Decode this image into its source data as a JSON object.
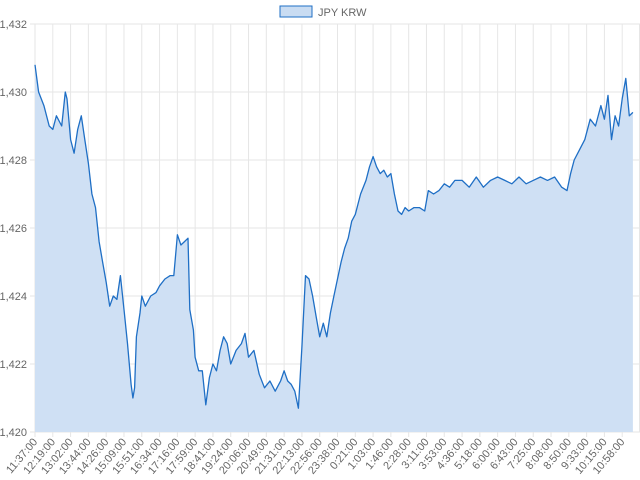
{
  "colors": {
    "line": "#1f6fc5",
    "fill": "#cfe0f4",
    "legend_fill": "#c9dcf2",
    "grid": "#e6e6e6",
    "axis_text": "#666666"
  },
  "chart_data": {
    "type": "area",
    "title": "",
    "xlabel": "",
    "ylabel": "",
    "legend": {
      "position": "top-center",
      "entries": [
        "JPY KRW"
      ]
    },
    "grid": true,
    "ylim": [
      1420,
      1432
    ],
    "y_ticks": [
      "1,420",
      "1,422",
      "1,424",
      "1,426",
      "1,428",
      "1,430",
      "1,432"
    ],
    "x_ticks": [
      "11:37:00",
      "12:19:00",
      "13:02:00",
      "13:44:00",
      "14:26:00",
      "15:09:00",
      "15:51:00",
      "16:34:00",
      "17:16:00",
      "17:59:00",
      "18:41:00",
      "19:24:00",
      "20:06:00",
      "20:49:00",
      "21:31:00",
      "22:13:00",
      "22:56:00",
      "23:38:00",
      "0:21:00",
      "1:03:00",
      "1:46:00",
      "2:28:00",
      "3:11:00",
      "3:53:00",
      "4:36:00",
      "5:18:00",
      "6:00:00",
      "6:43:00",
      "7:25:00",
      "8:08:00",
      "8:50:00",
      "9:33:00",
      "10:15:00",
      "10:58:00"
    ],
    "series": [
      {
        "name": "JPY KRW",
        "points": [
          [
            0,
            1430.8
          ],
          [
            0.2,
            1430.0
          ],
          [
            0.5,
            1429.6
          ],
          [
            0.8,
            1429.0
          ],
          [
            1.0,
            1428.9
          ],
          [
            1.2,
            1429.3
          ],
          [
            1.5,
            1429.0
          ],
          [
            1.7,
            1430.0
          ],
          [
            1.8,
            1429.8
          ],
          [
            2.0,
            1428.6
          ],
          [
            2.2,
            1428.2
          ],
          [
            2.4,
            1428.9
          ],
          [
            2.6,
            1429.3
          ],
          [
            2.8,
            1428.6
          ],
          [
            3.0,
            1427.9
          ],
          [
            3.2,
            1427.0
          ],
          [
            3.4,
            1426.6
          ],
          [
            3.6,
            1425.6
          ],
          [
            3.8,
            1425.0
          ],
          [
            4.0,
            1424.4
          ],
          [
            4.2,
            1423.7
          ],
          [
            4.4,
            1424.0
          ],
          [
            4.6,
            1423.9
          ],
          [
            4.8,
            1424.6
          ],
          [
            5.0,
            1423.6
          ],
          [
            5.2,
            1422.6
          ],
          [
            5.4,
            1421.4
          ],
          [
            5.5,
            1421.0
          ],
          [
            5.6,
            1421.3
          ],
          [
            5.7,
            1422.8
          ],
          [
            5.9,
            1423.5
          ],
          [
            6.0,
            1424.0
          ],
          [
            6.2,
            1423.7
          ],
          [
            6.5,
            1424.0
          ],
          [
            6.8,
            1424.1
          ],
          [
            7.0,
            1424.3
          ],
          [
            7.3,
            1424.5
          ],
          [
            7.6,
            1424.6
          ],
          [
            7.8,
            1424.6
          ],
          [
            8.0,
            1425.8
          ],
          [
            8.2,
            1425.5
          ],
          [
            8.4,
            1425.6
          ],
          [
            8.6,
            1425.7
          ],
          [
            8.7,
            1423.6
          ],
          [
            8.9,
            1423.0
          ],
          [
            9.0,
            1422.2
          ],
          [
            9.2,
            1421.8
          ],
          [
            9.4,
            1421.8
          ],
          [
            9.6,
            1420.8
          ],
          [
            9.8,
            1421.6
          ],
          [
            10.0,
            1422.0
          ],
          [
            10.2,
            1421.8
          ],
          [
            10.4,
            1422.4
          ],
          [
            10.6,
            1422.8
          ],
          [
            10.8,
            1422.6
          ],
          [
            11.0,
            1422.0
          ],
          [
            11.3,
            1422.4
          ],
          [
            11.6,
            1422.6
          ],
          [
            11.8,
            1422.9
          ],
          [
            12.0,
            1422.2
          ],
          [
            12.3,
            1422.4
          ],
          [
            12.6,
            1421.7
          ],
          [
            12.9,
            1421.3
          ],
          [
            13.2,
            1421.5
          ],
          [
            13.5,
            1421.2
          ],
          [
            13.8,
            1421.5
          ],
          [
            14.0,
            1421.8
          ],
          [
            14.2,
            1421.5
          ],
          [
            14.4,
            1421.4
          ],
          [
            14.6,
            1421.2
          ],
          [
            14.8,
            1420.7
          ],
          [
            15.0,
            1422.5
          ],
          [
            15.2,
            1424.6
          ],
          [
            15.4,
            1424.5
          ],
          [
            15.6,
            1424.0
          ],
          [
            15.8,
            1423.4
          ],
          [
            16.0,
            1422.8
          ],
          [
            16.2,
            1423.2
          ],
          [
            16.4,
            1422.8
          ],
          [
            16.6,
            1423.5
          ],
          [
            16.8,
            1424.0
          ],
          [
            17.0,
            1424.5
          ],
          [
            17.2,
            1425.0
          ],
          [
            17.4,
            1425.4
          ],
          [
            17.6,
            1425.7
          ],
          [
            17.8,
            1426.2
          ],
          [
            18.0,
            1426.4
          ],
          [
            18.3,
            1427.0
          ],
          [
            18.6,
            1427.4
          ],
          [
            18.8,
            1427.8
          ],
          [
            19.0,
            1428.1
          ],
          [
            19.2,
            1427.8
          ],
          [
            19.4,
            1427.6
          ],
          [
            19.6,
            1427.7
          ],
          [
            19.8,
            1427.5
          ],
          [
            20.0,
            1427.6
          ],
          [
            20.2,
            1427.0
          ],
          [
            20.4,
            1426.5
          ],
          [
            20.6,
            1426.4
          ],
          [
            20.8,
            1426.6
          ],
          [
            21.0,
            1426.5
          ],
          [
            21.3,
            1426.6
          ],
          [
            21.6,
            1426.6
          ],
          [
            21.9,
            1426.5
          ],
          [
            22.1,
            1427.1
          ],
          [
            22.4,
            1427.0
          ],
          [
            22.7,
            1427.1
          ],
          [
            23.0,
            1427.3
          ],
          [
            23.3,
            1427.2
          ],
          [
            23.6,
            1427.4
          ],
          [
            24.0,
            1427.4
          ],
          [
            24.4,
            1427.2
          ],
          [
            24.8,
            1427.5
          ],
          [
            25.2,
            1427.2
          ],
          [
            25.6,
            1427.4
          ],
          [
            26.0,
            1427.5
          ],
          [
            26.4,
            1427.4
          ],
          [
            26.8,
            1427.3
          ],
          [
            27.2,
            1427.5
          ],
          [
            27.6,
            1427.3
          ],
          [
            28.0,
            1427.4
          ],
          [
            28.4,
            1427.5
          ],
          [
            28.8,
            1427.4
          ],
          [
            29.2,
            1427.5
          ],
          [
            29.6,
            1427.2
          ],
          [
            29.9,
            1427.1
          ],
          [
            30.1,
            1427.6
          ],
          [
            30.3,
            1428.0
          ],
          [
            30.6,
            1428.3
          ],
          [
            30.9,
            1428.6
          ],
          [
            31.2,
            1429.2
          ],
          [
            31.5,
            1429.0
          ],
          [
            31.8,
            1429.6
          ],
          [
            32.0,
            1429.2
          ],
          [
            32.2,
            1429.9
          ],
          [
            32.4,
            1428.6
          ],
          [
            32.6,
            1429.3
          ],
          [
            32.8,
            1429.0
          ],
          [
            33.0,
            1429.8
          ],
          [
            33.2,
            1430.4
          ],
          [
            33.4,
            1429.3
          ],
          [
            33.6,
            1429.4
          ]
        ]
      }
    ]
  }
}
